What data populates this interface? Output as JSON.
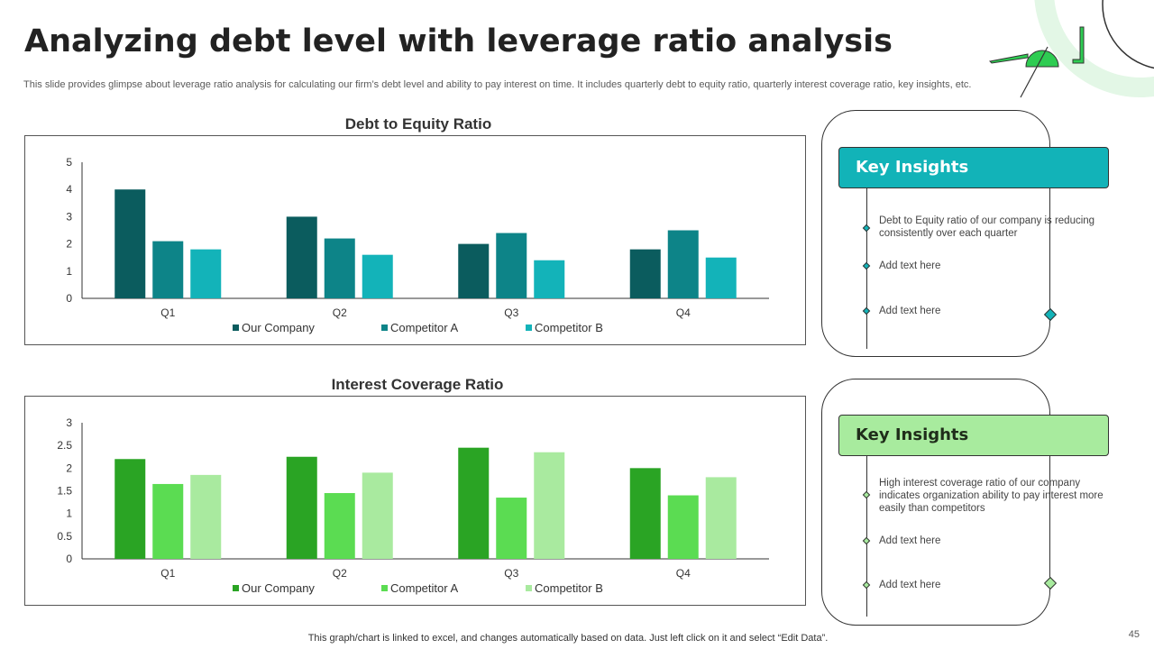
{
  "slide": {
    "title": "Analyzing debt level with leverage ratio analysis",
    "subtitle": "This slide provides glimpse about leverage ratio analysis for calculating our firm’s debt level and ability to pay interest on time. It includes quarterly debt to equity ratio, quarterly interest coverage ratio, key insights, etc.",
    "footer": "This graph/chart is linked to excel,  and changes automatically based on data. Just left click on it and select “Edit Data”.",
    "page_number": "45"
  },
  "chart_data": [
    {
      "type": "bar",
      "title": "Debt to Equity Ratio",
      "categories": [
        "Q1",
        "Q2",
        "Q3",
        "Q4"
      ],
      "series": [
        {
          "name": "Our Company",
          "values": [
            4.0,
            3.0,
            2.0,
            1.8
          ],
          "color": "#0b5c5e"
        },
        {
          "name": "Competitor A",
          "values": [
            2.1,
            2.2,
            2.4,
            2.5
          ],
          "color": "#0d8488"
        },
        {
          "name": "Competitor B",
          "values": [
            1.8,
            1.6,
            1.4,
            1.5
          ],
          "color": "#13b3b9"
        }
      ],
      "yticks": [
        "0",
        "1",
        "2",
        "3",
        "4",
        "5"
      ],
      "ylim": [
        0,
        5
      ],
      "xlabel": "",
      "ylabel": "",
      "legend": "bottom"
    },
    {
      "type": "bar",
      "title": "Interest Coverage Ratio",
      "categories": [
        "Q1",
        "Q2",
        "Q3",
        "Q4"
      ],
      "series": [
        {
          "name": "Our Company",
          "values": [
            2.2,
            2.25,
            2.45,
            2.0
          ],
          "color": "#2aa424"
        },
        {
          "name": "Competitor A",
          "values": [
            1.65,
            1.45,
            1.35,
            1.4
          ],
          "color": "#5bdc52"
        },
        {
          "name": "Competitor B",
          "values": [
            1.85,
            1.9,
            2.35,
            1.8
          ],
          "color": "#a9ea9f"
        }
      ],
      "yticks": [
        "0",
        "0.5",
        "1",
        "1.5",
        "2",
        "2.5",
        "3"
      ],
      "ylim": [
        0,
        3
      ],
      "xlabel": "",
      "ylabel": "",
      "legend": "bottom"
    }
  ],
  "insights": [
    {
      "heading": "Key Insights",
      "bullets": [
        "Debt to Equity ratio of our company is reducing consistently over each quarter",
        "Add text here",
        "Add text here"
      ]
    },
    {
      "heading": "Key Insights",
      "bullets": [
        "High interest coverage ratio of our company indicates organization ability to pay interest more easily than competitors",
        "Add text here",
        "Add text here"
      ]
    }
  ],
  "colors": {
    "teal": "#12b3b8",
    "light_green": "#a8eb9e",
    "accent_green": "#2ecc52"
  }
}
